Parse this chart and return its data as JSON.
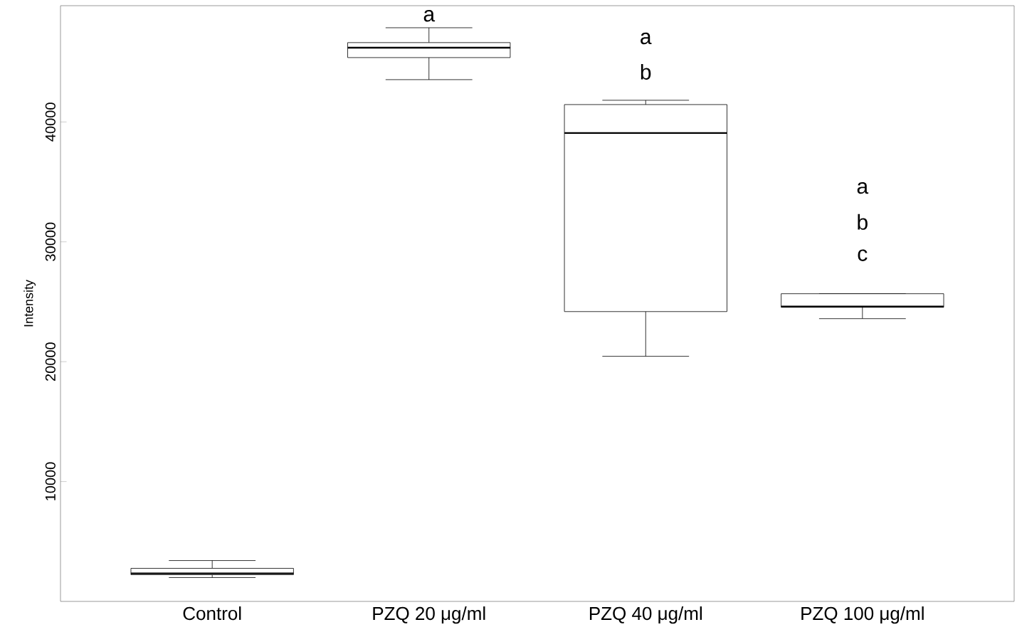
{
  "chart_data": {
    "type": "box",
    "ylabel": "Intensity",
    "categories": [
      "Control",
      "PZQ 20 μg/ml",
      "PZQ 40 μg/ml",
      "PZQ 100 μg/ml"
    ],
    "boxes": [
      {
        "low": 1990,
        "q1": 2230,
        "median": 2340,
        "q3": 2760,
        "high": 3410
      },
      {
        "low": 43530,
        "q1": 45370,
        "median": 46200,
        "q3": 46620,
        "high": 47860
      },
      {
        "low": 20450,
        "q1": 24180,
        "median": 39080,
        "q3": 41450,
        "high": 41810
      },
      {
        "low": 23590,
        "q1": 24540,
        "median": 24600,
        "q3": 25670,
        "high": 25670
      }
    ],
    "color": "#000000",
    "ylim": [
      0,
      49700
    ],
    "yticks": [
      10000,
      20000,
      30000,
      40000
    ],
    "grid": false,
    "annotations": [
      "a",
      "a",
      "b",
      "a",
      "b",
      "c"
    ]
  }
}
